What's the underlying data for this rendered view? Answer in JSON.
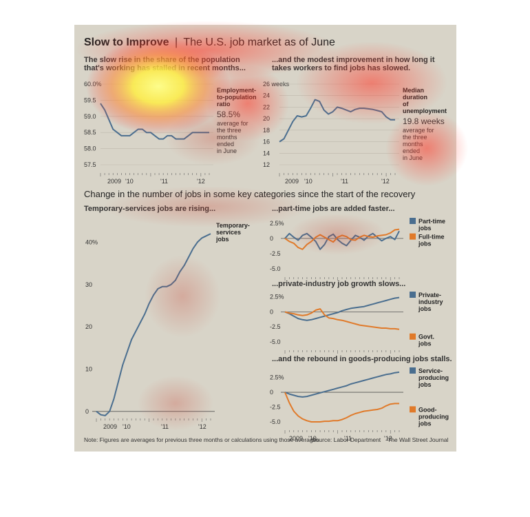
{
  "header": {
    "title_bold": "Slow to Improve",
    "title_sep": "|",
    "title_rest": "The U.S. job market as of June"
  },
  "section2": {
    "title": "Change in the number of jobs in some key categories since the start of the recovery"
  },
  "footer": {
    "note": "Note: Figures are averages for previous three months or calculations using those averages",
    "source": "Source: Labor Department",
    "credit": "The Wall Street Journal"
  },
  "colors": {
    "blue": "#4a6e8f",
    "orange": "#e07a2a",
    "bg": "#d8d4c8",
    "text": "#222222"
  },
  "chart_data": [
    {
      "id": "emp",
      "type": "line",
      "subtitle": [
        "The slow rise in the share of the population",
        "that's working has stalled in recent months..."
      ],
      "series_label": [
        "Employment-",
        "to-population",
        "ratio"
      ],
      "annotation_value": "58.5%",
      "annotation_text": [
        "average for",
        "the three",
        "months",
        "ended",
        "in June"
      ],
      "yticks": [
        "60.0%",
        "59.5",
        "59.0",
        "58.5",
        "58.0",
        "57.5"
      ],
      "ytick_values": [
        60.0,
        59.5,
        59.0,
        58.5,
        58.0,
        57.5
      ],
      "ylim": [
        57.5,
        60.0
      ],
      "xlabels": [
        "2009",
        "'10",
        "'11",
        "'12"
      ],
      "series": [
        {
          "name": "Employment-to-population ratio",
          "color": "#4a6e8f",
          "values": [
            59.4,
            59.2,
            58.9,
            58.6,
            58.5,
            58.4,
            58.4,
            58.4,
            58.5,
            58.6,
            58.6,
            58.5,
            58.5,
            58.4,
            58.3,
            58.3,
            58.4,
            58.4,
            58.3,
            58.3,
            58.3,
            58.4,
            58.5,
            58.5,
            58.5,
            58.5,
            58.5
          ]
        }
      ]
    },
    {
      "id": "dur",
      "type": "line",
      "subtitle": [
        "...and the modest improvement in how long it",
        "takes workers to find jobs has slowed."
      ],
      "series_label": [
        "Median",
        "duration",
        "of",
        "unemployment"
      ],
      "annotation_value": "19.8 weeks",
      "annotation_text": [
        "average for",
        "the three",
        "months",
        "ended",
        "in June"
      ],
      "yticks": [
        "26 weeks",
        "24",
        "22",
        "20",
        "18",
        "16",
        "14",
        "12"
      ],
      "ytick_values": [
        26,
        24,
        22,
        20,
        18,
        16,
        14,
        12
      ],
      "ylim": [
        12,
        26
      ],
      "xlabels": [
        "2009",
        "'10",
        "'11",
        "'12"
      ],
      "series": [
        {
          "name": "Median duration of unemployment",
          "color": "#4a6e8f",
          "values": [
            16,
            16.5,
            18,
            19.5,
            20.5,
            20.3,
            20.5,
            21.8,
            23.3,
            23,
            21.5,
            20.8,
            21.2,
            22,
            21.8,
            21.5,
            21.2,
            21.6,
            21.8,
            21.8,
            21.7,
            21.6,
            21.4,
            21.2,
            20.3,
            19.8,
            19.8
          ]
        }
      ]
    },
    {
      "id": "temp",
      "type": "line",
      "subtitle": [
        "Temporary-services jobs are rising..."
      ],
      "yticks": [
        "40%",
        "30",
        "20",
        "10",
        "0"
      ],
      "ytick_values": [
        40,
        30,
        20,
        10,
        0
      ],
      "ylim": [
        -1.5,
        43
      ],
      "xlabels": [
        "2009",
        "'10",
        "'11",
        "'12"
      ],
      "series": [
        {
          "name": "Temporary-services jobs",
          "label": [
            "Temporary-",
            "services",
            "jobs"
          ],
          "color": "#4a6e8f",
          "values": [
            0,
            -0.8,
            -1,
            0,
            3,
            7,
            11,
            14,
            17,
            19,
            21,
            23,
            25.5,
            27.5,
            29,
            29.5,
            29.5,
            30,
            31,
            33,
            34.5,
            36.5,
            38.5,
            40,
            41,
            41.5,
            42
          ]
        }
      ]
    },
    {
      "id": "parttime",
      "type": "line",
      "subtitle": [
        "...part-time jobs are added faster..."
      ],
      "yticks": [
        "2.5%",
        "0",
        "-2.5",
        "-5.0"
      ],
      "ytick_values": [
        2.5,
        0,
        -2.5,
        -5.0
      ],
      "ylim": [
        -5,
        2.7
      ],
      "series": [
        {
          "name": "Part-time jobs",
          "label": [
            "Part-time",
            "jobs"
          ],
          "color": "#4a6e8f",
          "values": [
            0,
            0.8,
            0.2,
            -0.3,
            0.5,
            0.8,
            0.2,
            -0.5,
            -1.8,
            -1,
            0.3,
            0.7,
            -0.2,
            -0.8,
            -1.2,
            -0.3,
            0.5,
            0.2,
            -0.3,
            0.4,
            0.8,
            0.2,
            -0.4,
            0,
            0.3,
            -0.2,
            1.2
          ]
        },
        {
          "name": "Full-time jobs",
          "label": [
            "Full-time",
            "jobs"
          ],
          "color": "#e07a2a",
          "values": [
            0,
            -0.5,
            -0.8,
            -1.5,
            -1.8,
            -1,
            -0.5,
            0.2,
            0.6,
            0.2,
            -0.2,
            -0.6,
            0.2,
            0.5,
            0.3,
            -0.2,
            -0.3,
            0.2,
            0.5,
            0.3,
            0.2,
            0.4,
            0.5,
            0.6,
            0.9,
            1.4,
            1.5
          ]
        }
      ]
    },
    {
      "id": "private",
      "type": "line",
      "subtitle": [
        "...private-industry job growth slows..."
      ],
      "yticks": [
        "2.5%",
        "0",
        "-2.5",
        "-5.0"
      ],
      "ytick_values": [
        2.5,
        0,
        -2.5,
        -5.0
      ],
      "ylim": [
        -5,
        2.7
      ],
      "series": [
        {
          "name": "Private-industry jobs",
          "label": [
            "Private-",
            "industry",
            "jobs"
          ],
          "color": "#4a6e8f",
          "values": [
            0,
            -0.3,
            -0.7,
            -1.1,
            -1.3,
            -1.4,
            -1.3,
            -1.1,
            -0.9,
            -0.7,
            -0.5,
            -0.3,
            -0.1,
            0.2,
            0.4,
            0.6,
            0.7,
            0.8,
            0.9,
            1.1,
            1.3,
            1.5,
            1.7,
            1.9,
            2.1,
            2.3,
            2.4
          ]
        },
        {
          "name": "Govt. jobs",
          "label": [
            "Govt.",
            "jobs"
          ],
          "color": "#e07a2a",
          "values": [
            0,
            -0.2,
            -0.3,
            -0.5,
            -0.6,
            -0.5,
            -0.2,
            0.3,
            0.5,
            -0.5,
            -1.0,
            -1.1,
            -1.3,
            -1.4,
            -1.6,
            -1.8,
            -2.0,
            -2.2,
            -2.3,
            -2.4,
            -2.5,
            -2.6,
            -2.7,
            -2.7,
            -2.8,
            -2.8,
            -2.9
          ]
        }
      ]
    },
    {
      "id": "goods",
      "type": "line",
      "subtitle": [
        "...and the rebound in goods-producing jobs stalls."
      ],
      "yticks": [
        "2.5%",
        "0",
        "-2.5",
        "-5.0"
      ],
      "ytick_values": [
        2.5,
        0,
        -2.5,
        -5.0
      ],
      "ylim": [
        -5,
        3.5
      ],
      "xlabels": [
        "2009",
        "'10",
        "'11",
        "'12"
      ],
      "series": [
        {
          "name": "Service-producing jobs",
          "label": [
            "Service-",
            "producing",
            "jobs"
          ],
          "color": "#4a6e8f",
          "values": [
            0,
            -0.3,
            -0.5,
            -0.7,
            -0.8,
            -0.7,
            -0.5,
            -0.3,
            -0.1,
            0.1,
            0.3,
            0.5,
            0.7,
            0.9,
            1.1,
            1.4,
            1.6,
            1.8,
            2.0,
            2.2,
            2.4,
            2.6,
            2.8,
            3.0,
            3.1,
            3.3,
            3.4
          ]
        },
        {
          "name": "Good-producing jobs",
          "label": [
            "Good-",
            "producing",
            "jobs"
          ],
          "color": "#e07a2a",
          "values": [
            0,
            -1.8,
            -3.2,
            -4.0,
            -4.5,
            -4.8,
            -5.0,
            -5.0,
            -5.0,
            -4.9,
            -4.9,
            -4.8,
            -4.8,
            -4.6,
            -4.3,
            -3.9,
            -3.6,
            -3.4,
            -3.2,
            -3.1,
            -3.0,
            -2.9,
            -2.7,
            -2.3,
            -2.0,
            -1.9,
            -1.9
          ]
        }
      ]
    }
  ]
}
